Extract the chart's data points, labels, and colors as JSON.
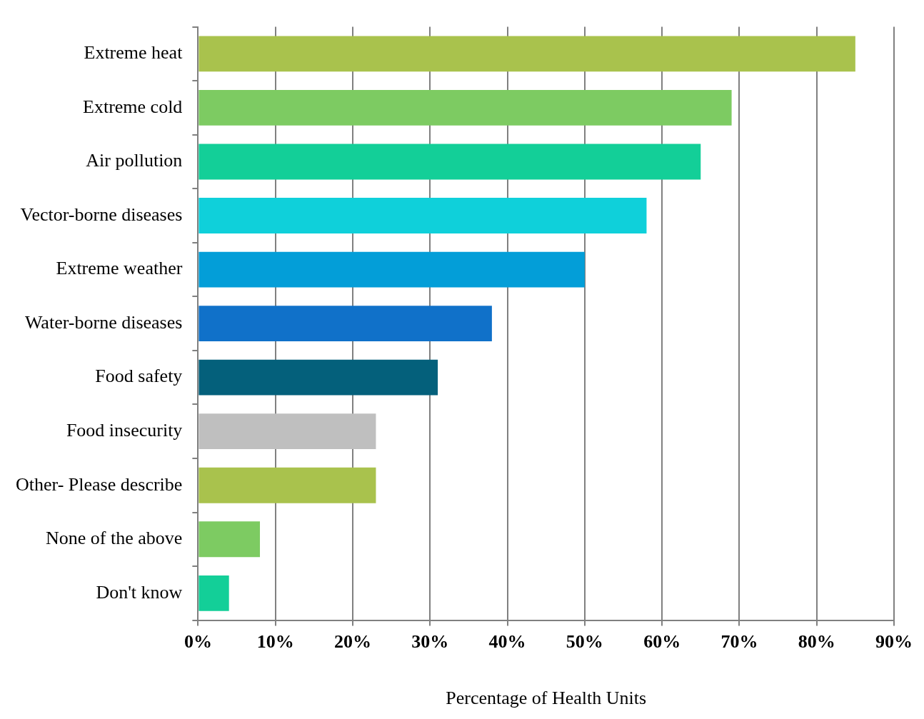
{
  "chart_data": {
    "type": "bar",
    "orientation": "horizontal",
    "xlabel": "Percentage of Health Units",
    "categories": [
      "Extreme heat",
      "Extreme cold",
      "Air pollution",
      "Vector-borne diseases",
      "Extreme weather",
      "Water-borne diseases",
      "Food safety",
      "Food insecurity",
      "Other- Please describe",
      "None of the above",
      "Don't know"
    ],
    "values": [
      85,
      69,
      65,
      58,
      50,
      38,
      31,
      23,
      23,
      8,
      4
    ],
    "colors": [
      "#a9c24d",
      "#7dcb62",
      "#13cf98",
      "#0fd0da",
      "#039ed8",
      "#1071c9",
      "#04607b",
      "#bfbfbf",
      "#a9c24d",
      "#7dcb62",
      "#13cf98"
    ],
    "xlim": [
      0,
      90
    ],
    "xticks": [
      {
        "value": 0,
        "label": "0%"
      },
      {
        "value": 10,
        "label": "10%"
      },
      {
        "value": 20,
        "label": "20%"
      },
      {
        "value": 30,
        "label": "30%"
      },
      {
        "value": 40,
        "label": "40%"
      },
      {
        "value": 50,
        "label": "50%"
      },
      {
        "value": 60,
        "label": "60%"
      },
      {
        "value": 70,
        "label": "70%"
      },
      {
        "value": 80,
        "label": "80%"
      },
      {
        "value": 90,
        "label": "90%"
      }
    ],
    "grid": "x",
    "legend": false
  }
}
